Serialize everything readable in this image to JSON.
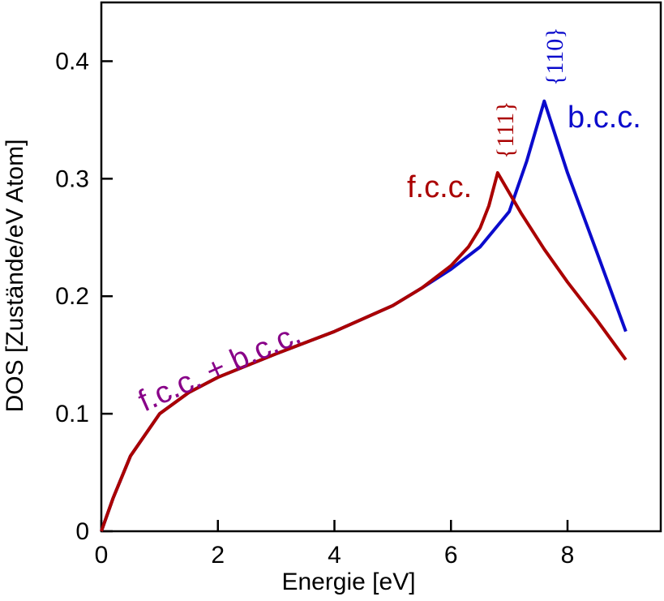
{
  "chart_data": {
    "type": "line",
    "title": "",
    "xlabel": "Energie [eV]",
    "ylabel": "DOS [Zustände/eV Atom]",
    "xlim": [
      0,
      9.6
    ],
    "ylim": [
      0,
      0.45
    ],
    "xticks": [
      0,
      2,
      4,
      6,
      8
    ],
    "xtick_labels": [
      "0",
      "2",
      "4",
      "6",
      "8"
    ],
    "yticks": [
      0,
      0.1,
      0.2,
      0.3,
      0.4
    ],
    "ytick_labels": [
      "0",
      "0.1",
      "0.2",
      "0.3",
      "0.4"
    ],
    "grid": false,
    "series": [
      {
        "name": "b.c.c.",
        "color": "#0b0bcc",
        "x": [
          0,
          0.2,
          0.5,
          1.0,
          1.5,
          2.0,
          3.0,
          4.0,
          5.0,
          5.5,
          6.0,
          6.5,
          7.0,
          7.3,
          7.6,
          8.0,
          8.5,
          9.0
        ],
        "y": [
          0,
          0.028,
          0.064,
          0.1,
          0.118,
          0.131,
          0.151,
          0.17,
          0.192,
          0.207,
          0.223,
          0.242,
          0.272,
          0.315,
          0.366,
          0.305,
          0.238,
          0.17
        ]
      },
      {
        "name": "f.c.c.",
        "color": "#aa0000",
        "x": [
          0,
          0.2,
          0.5,
          1.0,
          1.5,
          2.0,
          3.0,
          4.0,
          5.0,
          5.5,
          6.0,
          6.3,
          6.5,
          6.65,
          6.8,
          7.2,
          7.6,
          8.0,
          8.5,
          9.0
        ],
        "y": [
          0,
          0.028,
          0.064,
          0.1,
          0.118,
          0.131,
          0.151,
          0.17,
          0.192,
          0.207,
          0.226,
          0.242,
          0.258,
          0.277,
          0.305,
          0.271,
          0.24,
          0.212,
          0.18,
          0.146
        ]
      }
    ],
    "annotations": [
      {
        "text": "f.c.c. + b.c.c.",
        "color": "#880088"
      },
      {
        "text": "f.c.c.",
        "color": "#aa0000"
      },
      {
        "text": "b.c.c.",
        "color": "#0b0bcc"
      },
      {
        "text": "{111}",
        "color": "#aa0000"
      },
      {
        "text": "{110}",
        "color": "#0b0bcc"
      }
    ]
  }
}
